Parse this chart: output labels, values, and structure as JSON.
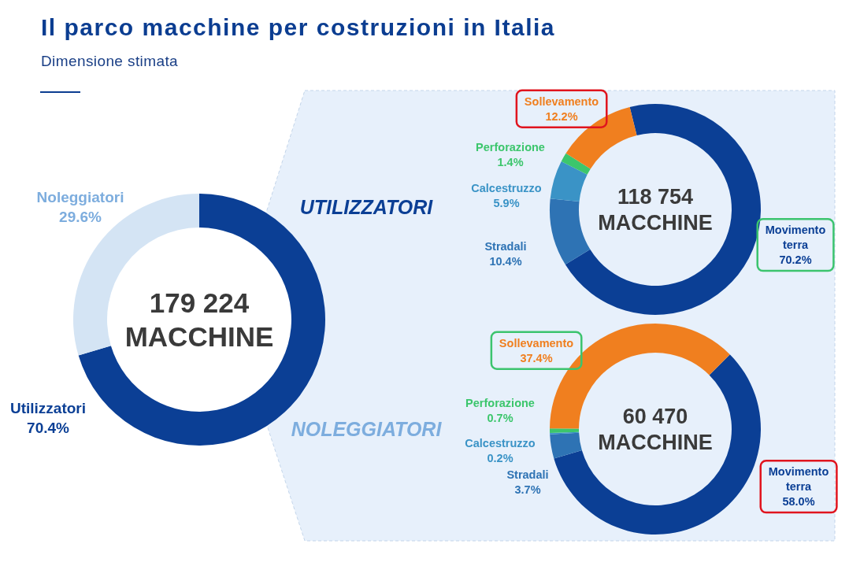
{
  "chart_data": [
    {
      "type": "donut",
      "title": "Il parco macchine per costruzioni in Italia",
      "subtitle": "Dimensione stimata",
      "categories": [
        "Utilizzatori",
        "Noleggiatori"
      ],
      "values": [
        70.4,
        29.6
      ],
      "value_labels": [
        "70.4%",
        "29.6%"
      ],
      "colors": [
        "#0b3f95",
        "#d4e4f4"
      ],
      "annotations": [
        "179 224",
        "MACCHINE"
      ]
    },
    {
      "type": "donut",
      "title": "UTILIZZATORI",
      "categories": [
        "Movimento terra",
        "Stradali",
        "Calcestruzzo",
        "Perforazione",
        "Sollevamento"
      ],
      "values": [
        70.2,
        10.4,
        5.9,
        1.4,
        12.2
      ],
      "value_labels": [
        "70.2%",
        "10.4%",
        "5.9%",
        "1.4%",
        "12.2%"
      ],
      "colors": [
        "#0b3f95",
        "#2e73b4",
        "#3a93c6",
        "#3cc66c",
        "#f07f1f"
      ],
      "annotations": [
        "118 754",
        "MACCHINE"
      ]
    },
    {
      "type": "donut",
      "title": "NOLEGGIATORI",
      "categories": [
        "Movimento terra",
        "Stradali",
        "Calcestruzzo",
        "Perforazione",
        "Sollevamento"
      ],
      "values": [
        58.0,
        3.7,
        0.2,
        0.7,
        37.4
      ],
      "value_labels": [
        "58.0%",
        "3.7%",
        "0.2%",
        "0.7%",
        "37.4%"
      ],
      "colors": [
        "#0b3f95",
        "#2e73b4",
        "#3a93c6",
        "#3cc66c",
        "#f07f1f"
      ],
      "annotations": [
        "60 470",
        "MACCHINE"
      ]
    }
  ]
}
